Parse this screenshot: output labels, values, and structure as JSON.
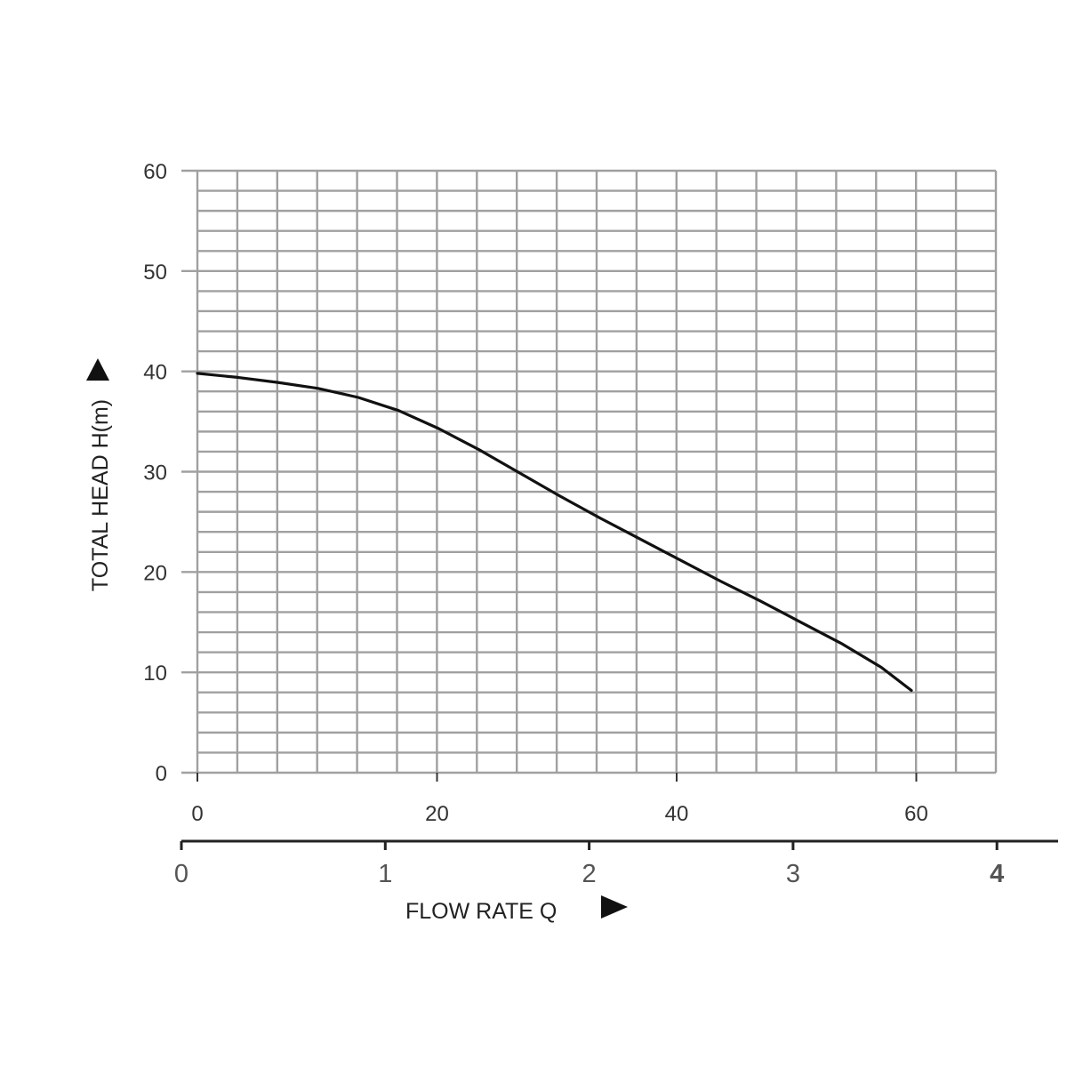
{
  "chart_data": {
    "type": "line",
    "xlabel": "FLOW RATE Q",
    "ylabel": "TOTAL HEAD H(m)",
    "xlim": [
      0,
      4
    ],
    "ylim": [
      0,
      60
    ],
    "grid": true,
    "x_ticks": [
      "0",
      "1",
      "2",
      "3",
      "4"
    ],
    "x_ticks_secondary": [
      "0",
      "20",
      "40",
      "60"
    ],
    "y_ticks": [
      "0",
      "10",
      "20",
      "30",
      "40",
      "50",
      "60"
    ],
    "series": [
      {
        "x": [
          0,
          0.2,
          0.4,
          0.6,
          0.8,
          1.0,
          1.2,
          1.4,
          1.6,
          1.8,
          2.0,
          2.2,
          2.4,
          2.6,
          2.8,
          3.0,
          3.2,
          3.4,
          3.55
        ],
        "y": [
          39.8,
          39.4,
          38.9,
          38.3,
          37.4,
          36.1,
          34.3,
          32.2,
          29.9,
          27.6,
          25.4,
          23.3,
          21.2,
          19.1,
          17.1,
          15.0,
          12.9,
          10.5,
          8.2
        ],
        "color": "#111111"
      }
    ],
    "colors": {
      "grid": "#a0a0a0",
      "curve": "#111111",
      "axis": "#222222"
    }
  }
}
